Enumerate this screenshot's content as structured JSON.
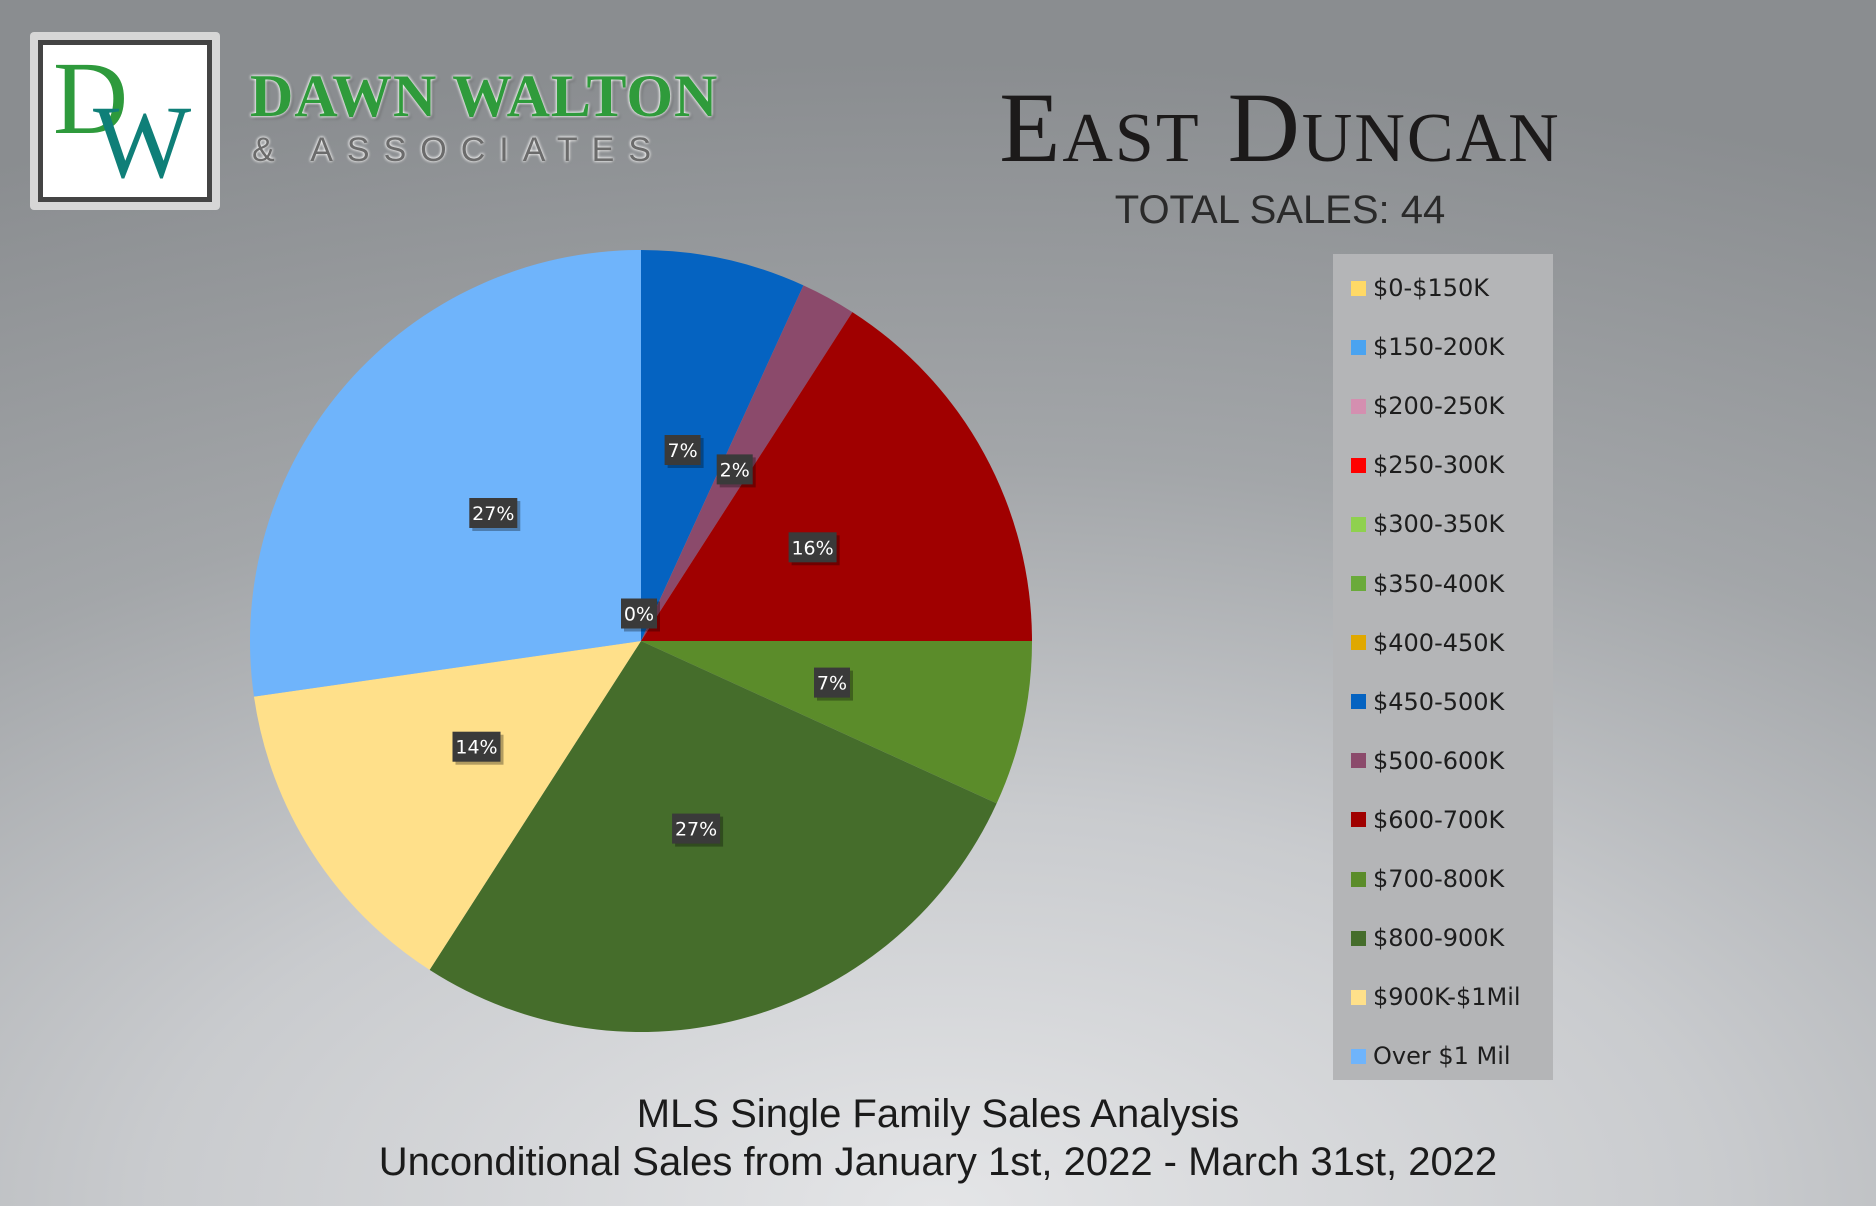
{
  "brand": {
    "monogram": [
      "D",
      "W"
    ],
    "name": "DAWN WALTON",
    "subtitle": "& ASSOCIATES"
  },
  "colors": {
    "brand_green": "#2e9a3c",
    "brand_teal": "#0f7f78",
    "label_background": "#3a3a3a"
  },
  "chart_data": {
    "type": "pie",
    "title": "East Duncan",
    "subtitle": "TOTAL SALES: 44",
    "legend_position": "right",
    "categories": [
      "$0-$150K",
      "$150-200K",
      "$200-250K",
      "$250-300K",
      "$300-350K",
      "$350-400K",
      "$400-450K",
      "$450-500K",
      "$500-600K",
      "$600-700K",
      "$700-800K",
      "$800-900K",
      "$900K-$1Mil",
      "Over $1 Mil"
    ],
    "values": [
      0,
      0,
      0,
      0,
      0,
      0,
      0,
      3,
      1,
      7,
      3,
      12,
      6,
      12
    ],
    "labels": [
      "0%",
      "",
      "",
      "",
      "",
      "",
      "",
      "7%",
      "2%",
      "16%",
      "7%",
      "27%",
      "14%",
      "27%"
    ],
    "colors": [
      "#ffd966",
      "#4aa3f0",
      "#d48fb0",
      "#ff0000",
      "#8fd14f",
      "#6aaa3a",
      "#e0a800",
      "#0563c1",
      "#8b4a6b",
      "#a00000",
      "#5b8c2a",
      "#456d2b",
      "#ffe08a",
      "#6fb4fb"
    ]
  },
  "footer": {
    "line1": "MLS Single Family Sales Analysis",
    "line2": "Unconditional Sales from January 1st, 2022 - March 31st, 2022"
  }
}
